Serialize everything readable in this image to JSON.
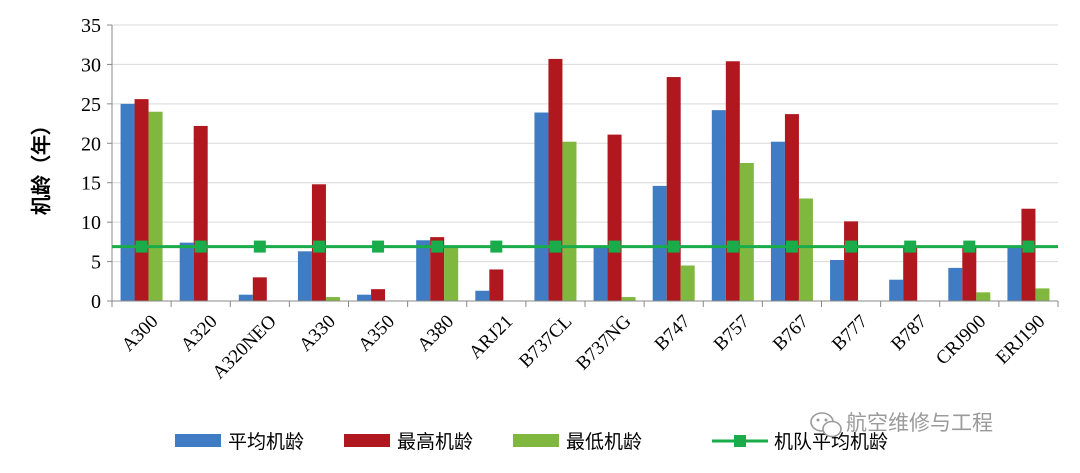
{
  "chart_data": {
    "type": "bar",
    "title": "",
    "xlabel": "",
    "ylabel": "机龄（年）",
    "ylim": [
      0,
      35
    ],
    "yticks": [
      0,
      5,
      10,
      15,
      20,
      25,
      30,
      35
    ],
    "grid": true,
    "legend_position": "bottom",
    "categories": [
      "A300",
      "A320",
      "A320NEO",
      "A330",
      "A350",
      "A380",
      "ARJ21",
      "B737CL",
      "B737NG",
      "B747",
      "B757",
      "B767",
      "B777",
      "B787",
      "CRJ900",
      "ERJ190"
    ],
    "series": [
      {
        "name": "平均机龄",
        "kind": "bar",
        "color": "#3f7cc4",
        "values": [
          25.0,
          7.4,
          0.8,
          6.3,
          0.8,
          7.7,
          1.3,
          23.9,
          6.8,
          14.6,
          24.2,
          20.2,
          5.2,
          2.7,
          4.2,
          7.0
        ]
      },
      {
        "name": "最高机龄",
        "kind": "bar",
        "color": "#b0171f",
        "values": [
          25.6,
          22.2,
          3.0,
          14.8,
          1.5,
          8.1,
          4.0,
          30.7,
          21.1,
          28.4,
          30.4,
          23.7,
          10.1,
          7.0,
          7.0,
          11.7
        ]
      },
      {
        "name": "最低机龄",
        "kind": "bar",
        "color": "#80b83f",
        "values": [
          24.0,
          0.0,
          0.0,
          0.5,
          0.0,
          7.0,
          0.0,
          20.2,
          0.5,
          4.5,
          17.5,
          13.0,
          0.0,
          0.0,
          1.1,
          1.6
        ]
      },
      {
        "name": "机队平均机龄",
        "kind": "line",
        "color": "#1aac4a",
        "values": [
          6.9,
          6.9,
          6.9,
          6.9,
          6.9,
          6.9,
          6.9,
          6.9,
          6.9,
          6.9,
          6.9,
          6.9,
          6.9,
          6.9,
          6.9,
          6.9
        ]
      }
    ]
  },
  "watermark": "航空维修与工程"
}
